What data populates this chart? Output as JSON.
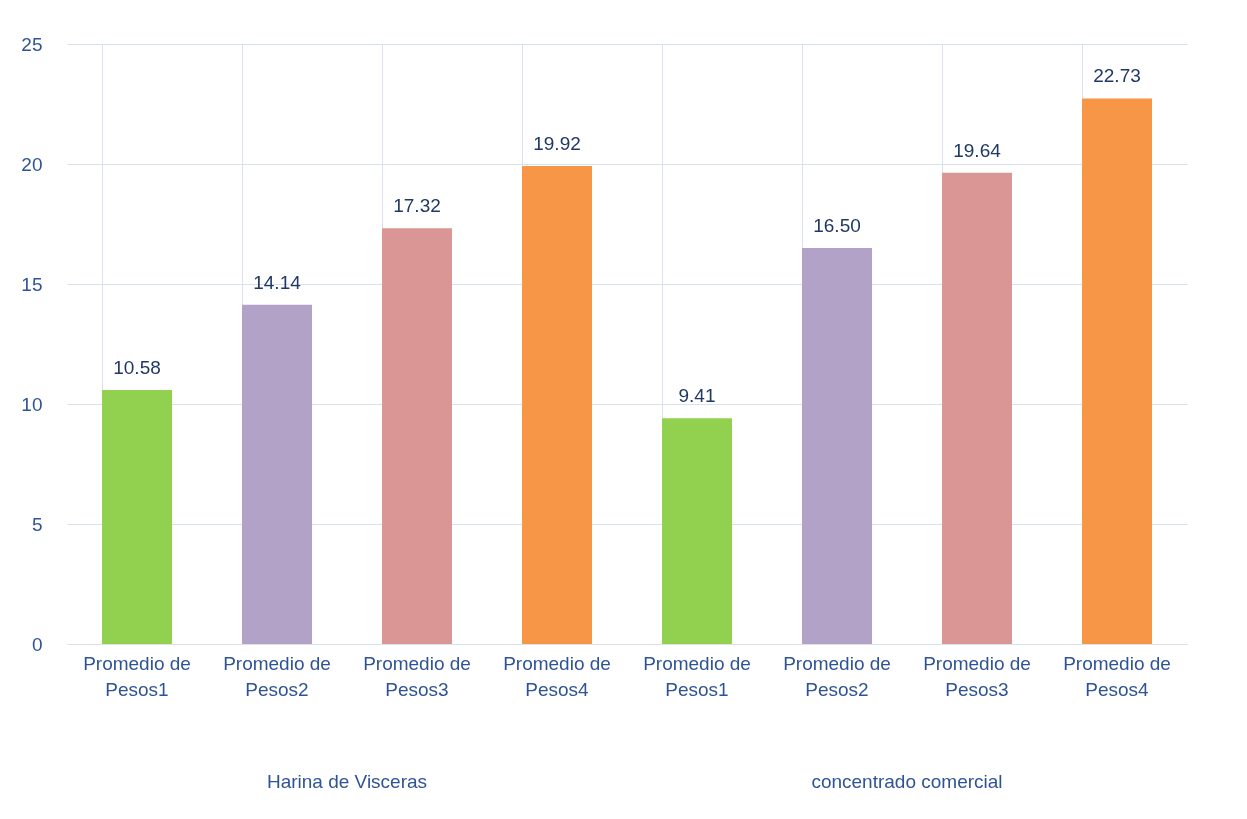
{
  "chart_data": {
    "type": "bar",
    "categories": [
      "Promedio de Pesos1",
      "Promedio de Pesos2",
      "Promedio de Pesos3",
      "Promedio de Pesos4",
      "Promedio de Pesos1",
      "Promedio de Pesos2",
      "Promedio de Pesos3",
      "Promedio de Pesos4"
    ],
    "values": [
      10.58,
      14.14,
      17.32,
      19.92,
      9.41,
      16.5,
      19.64,
      22.73
    ],
    "value_labels": [
      "10.58",
      "14.14",
      "17.32",
      "19.92",
      "9.41",
      "16.50",
      "19.64",
      "22.73"
    ],
    "colors": [
      "#92d050",
      "#b3a2c7",
      "#d99694",
      "#f79646",
      "#92d050",
      "#b3a2c7",
      "#d99694",
      "#f79646"
    ],
    "ylim": [
      0,
      25
    ],
    "yticks": [
      0,
      5,
      10,
      15,
      20,
      25
    ],
    "grid": true,
    "annotations": [
      "Harina de Visceras",
      "concentrado comercial"
    ]
  }
}
